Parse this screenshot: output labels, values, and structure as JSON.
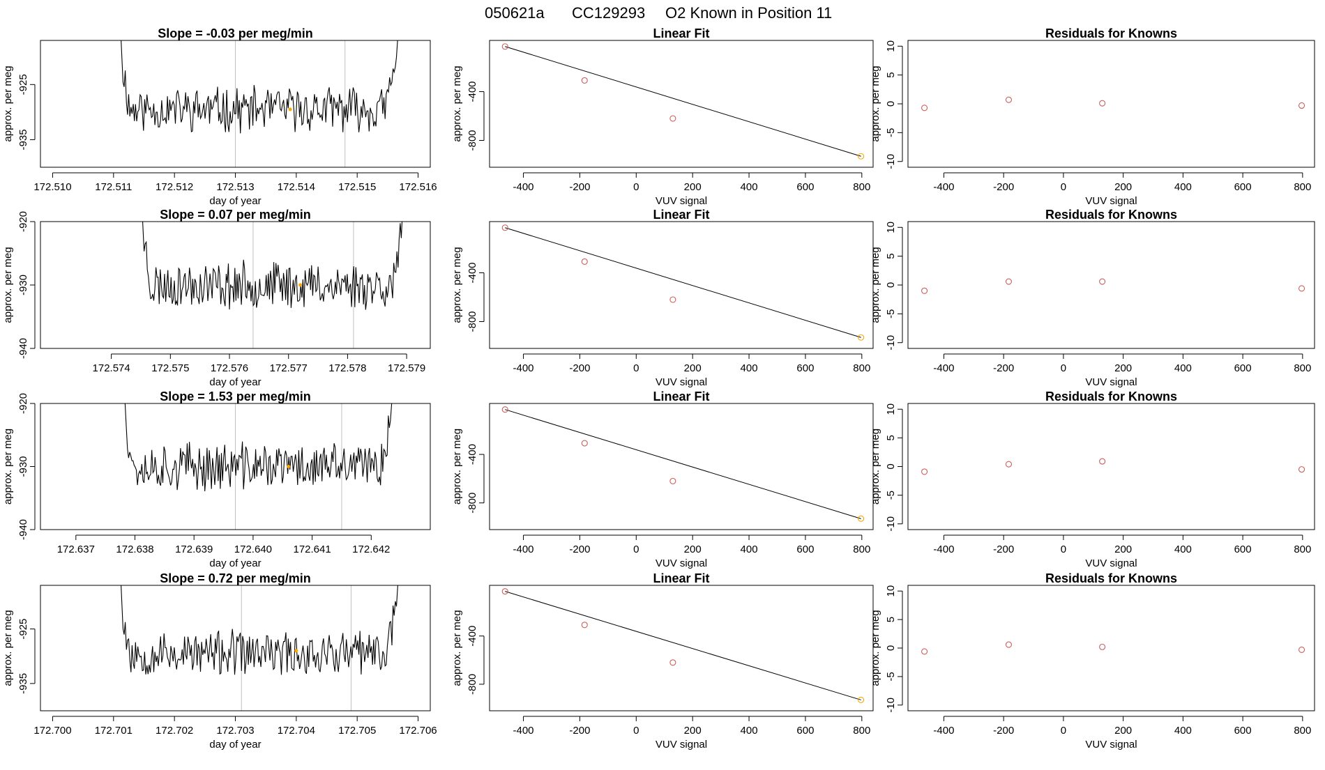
{
  "header": {
    "run_id": "050621a",
    "tank": "CC129293",
    "description": "O2 Known in Position  11"
  },
  "colors": {
    "trace": "#000000",
    "point": "#cd5c5c",
    "highlight": "#ffa500",
    "vline": "#c0c0c0",
    "axis": "#000000"
  },
  "chart_data": [
    {
      "type": "line",
      "row": 0,
      "col": 0,
      "title": "Slope =  -0.03  per meg/min",
      "xlabel": "day of year",
      "ylabel": "approx. per meg",
      "xlim": [
        172.5098,
        172.5162
      ],
      "ylim": [
        -940,
        -917
      ],
      "xticks": [
        "172.510",
        "172.511",
        "172.512",
        "172.513",
        "172.514",
        "172.515",
        "172.516"
      ],
      "xtick_values": [
        172.51,
        172.511,
        172.512,
        172.513,
        172.514,
        172.515,
        172.516
      ],
      "yticks": [
        "-925",
        "-935"
      ],
      "ytick_values": [
        -925,
        -935
      ],
      "trace_start": 172.5111,
      "trace_end": 172.5157,
      "baseline": -929.5,
      "noise": 3.5,
      "seed": 11,
      "vlines": [
        172.513,
        172.5148
      ],
      "highlight_point": {
        "x": 172.5139,
        "y": -929.5
      }
    },
    {
      "type": "scatter",
      "row": 0,
      "col": 1,
      "title": "Linear Fit",
      "xlabel": "VUV signal",
      "ylabel": "approx. per meg",
      "xlim": [
        -520,
        840
      ],
      "ylim": [
        -1020,
        20
      ],
      "xticks": [
        "-400",
        "-200",
        "0",
        "200",
        "400",
        "600",
        "800"
      ],
      "xtick_values": [
        -400,
        -200,
        0,
        200,
        400,
        600,
        800
      ],
      "yticks": [
        "-400",
        "-800"
      ],
      "ytick_values": [
        -400,
        -800
      ],
      "x": [
        -465,
        -183,
        130,
        797
      ],
      "y": [
        -30,
        -308,
        -620,
        -930
      ],
      "fit": {
        "x0": -465,
        "y0": -30,
        "x1": 797,
        "y1": -930
      }
    },
    {
      "type": "scatter",
      "row": 0,
      "col": 2,
      "title": "Residuals for Knowns",
      "xlabel": "VUV signal",
      "ylabel": "approx. per meg",
      "xlim": [
        -520,
        840
      ],
      "ylim": [
        -11,
        11
      ],
      "xticks": [
        "-400",
        "-200",
        "0",
        "200",
        "400",
        "600",
        "800"
      ],
      "xtick_values": [
        -400,
        -200,
        0,
        200,
        400,
        600,
        800
      ],
      "yticks": [
        "-10",
        "-5",
        "0",
        "5",
        "10"
      ],
      "ytick_values": [
        -10,
        -5,
        0,
        5,
        10
      ],
      "x": [
        -465,
        -183,
        130,
        797
      ],
      "y": [
        -0.7,
        0.7,
        0.1,
        -0.3
      ]
    },
    {
      "type": "line",
      "row": 1,
      "col": 0,
      "title": "Slope =  0.07  per meg/min",
      "xlabel": "day of year",
      "ylabel": "approx. per meg",
      "xlim": [
        172.5728,
        172.5794
      ],
      "ylim": [
        -940,
        -920
      ],
      "xticks": [
        "172.574",
        "172.575",
        "172.576",
        "172.577",
        "172.578",
        "172.579"
      ],
      "xtick_values": [
        172.574,
        172.575,
        172.576,
        172.577,
        172.578,
        172.579
      ],
      "yticks": [
        "-920",
        "-930",
        "-940"
      ],
      "ytick_values": [
        -920,
        -930,
        -940
      ],
      "trace_start": 172.5745,
      "trace_end": 172.579,
      "baseline": -930,
      "noise": 3.2,
      "seed": 23,
      "vlines": [
        172.5764,
        172.5781
      ],
      "highlight_point": {
        "x": 172.5772,
        "y": -930
      }
    },
    {
      "type": "scatter",
      "row": 1,
      "col": 1,
      "title": "Linear Fit",
      "xlabel": "VUV signal",
      "ylabel": "approx. per meg",
      "xlim": [
        -520,
        840
      ],
      "ylim": [
        -1020,
        20
      ],
      "xticks": [
        "-400",
        "-200",
        "0",
        "200",
        "400",
        "600",
        "800"
      ],
      "xtick_values": [
        -400,
        -200,
        0,
        200,
        400,
        600,
        800
      ],
      "yticks": [
        "-400",
        "-800"
      ],
      "ytick_values": [
        -400,
        -800
      ],
      "x": [
        -465,
        -183,
        130,
        797
      ],
      "y": [
        -30,
        -308,
        -620,
        -930
      ],
      "fit": {
        "x0": -465,
        "y0": -30,
        "x1": 797,
        "y1": -930
      }
    },
    {
      "type": "scatter",
      "row": 1,
      "col": 2,
      "title": "Residuals for Knowns",
      "xlabel": "VUV signal",
      "ylabel": "approx. per meg",
      "xlim": [
        -520,
        840
      ],
      "ylim": [
        -11,
        11
      ],
      "xticks": [
        "-400",
        "-200",
        "0",
        "200",
        "400",
        "600",
        "800"
      ],
      "xtick_values": [
        -400,
        -200,
        0,
        200,
        400,
        600,
        800
      ],
      "yticks": [
        "-10",
        "-5",
        "0",
        "5",
        "10"
      ],
      "ytick_values": [
        -10,
        -5,
        0,
        5,
        10
      ],
      "x": [
        -465,
        -183,
        130,
        797
      ],
      "y": [
        -1.0,
        0.6,
        0.6,
        -0.6
      ]
    },
    {
      "type": "line",
      "row": 2,
      "col": 0,
      "title": "Slope =  1.53  per meg/min",
      "xlabel": "day of year",
      "ylabel": "approx. per meg",
      "xlim": [
        172.6364,
        172.643
      ],
      "ylim": [
        -940,
        -920
      ],
      "xticks": [
        "172.637",
        "172.638",
        "172.639",
        "172.640",
        "172.641",
        "172.642"
      ],
      "xtick_values": [
        172.637,
        172.638,
        172.639,
        172.64,
        172.641,
        172.642
      ],
      "yticks": [
        "-920",
        "-930",
        "-940"
      ],
      "ytick_values": [
        -920,
        -930,
        -940
      ],
      "trace_start": 172.6378,
      "trace_end": 172.6424,
      "baseline": -930,
      "noise": 3.3,
      "seed": 37,
      "vlines": [
        172.6397,
        172.6415
      ],
      "highlight_point": {
        "x": 172.6406,
        "y": -930
      }
    },
    {
      "type": "scatter",
      "row": 2,
      "col": 1,
      "title": "Linear Fit",
      "xlabel": "VUV signal",
      "ylabel": "approx. per meg",
      "xlim": [
        -520,
        840
      ],
      "ylim": [
        -1020,
        20
      ],
      "xticks": [
        "-400",
        "-200",
        "0",
        "200",
        "400",
        "600",
        "800"
      ],
      "xtick_values": [
        -400,
        -200,
        0,
        200,
        400,
        600,
        800
      ],
      "yticks": [
        "-400",
        "-800"
      ],
      "ytick_values": [
        -400,
        -800
      ],
      "x": [
        -465,
        -183,
        130,
        797
      ],
      "y": [
        -30,
        -308,
        -620,
        -930
      ],
      "fit": {
        "x0": -465,
        "y0": -30,
        "x1": 797,
        "y1": -930
      }
    },
    {
      "type": "scatter",
      "row": 2,
      "col": 2,
      "title": "Residuals for Knowns",
      "xlabel": "VUV signal",
      "ylabel": "approx. per meg",
      "xlim": [
        -520,
        840
      ],
      "ylim": [
        -11,
        11
      ],
      "xticks": [
        "-400",
        "-200",
        "0",
        "200",
        "400",
        "600",
        "800"
      ],
      "xtick_values": [
        -400,
        -200,
        0,
        200,
        400,
        600,
        800
      ],
      "yticks": [
        "-10",
        "-5",
        "0",
        "5",
        "10"
      ],
      "ytick_values": [
        -10,
        -5,
        0,
        5,
        10
      ],
      "x": [
        -465,
        -183,
        130,
        797
      ],
      "y": [
        -0.9,
        0.4,
        0.9,
        -0.5
      ]
    },
    {
      "type": "line",
      "row": 3,
      "col": 0,
      "title": "Slope =  0.72  per meg/min",
      "xlabel": "day of year",
      "ylabel": "approx. per meg",
      "xlim": [
        172.6998,
        172.7062
      ],
      "ylim": [
        -940,
        -917
      ],
      "xticks": [
        "172.700",
        "172.701",
        "172.702",
        "172.703",
        "172.704",
        "172.705",
        "172.706"
      ],
      "xtick_values": [
        172.7,
        172.701,
        172.702,
        172.703,
        172.704,
        172.705,
        172.706
      ],
      "yticks": [
        "-925",
        "-935"
      ],
      "ytick_values": [
        -925,
        -935
      ],
      "trace_start": 172.7011,
      "trace_end": 172.7057,
      "baseline": -929.5,
      "noise": 3.6,
      "seed": 53,
      "vlines": [
        172.7031,
        172.7049
      ],
      "highlight_point": {
        "x": 172.704,
        "y": -929
      }
    },
    {
      "type": "scatter",
      "row": 3,
      "col": 1,
      "title": "Linear Fit",
      "xlabel": "VUV signal",
      "ylabel": "approx. per meg",
      "xlim": [
        -520,
        840
      ],
      "ylim": [
        -1020,
        20
      ],
      "xticks": [
        "-400",
        "-200",
        "0",
        "200",
        "400",
        "600",
        "800"
      ],
      "xtick_values": [
        -400,
        -200,
        0,
        200,
        400,
        600,
        800
      ],
      "yticks": [
        "-400",
        "-800"
      ],
      "ytick_values": [
        -400,
        -800
      ],
      "x": [
        -465,
        -183,
        130,
        797
      ],
      "y": [
        -30,
        -308,
        -620,
        -930
      ],
      "fit": {
        "x0": -465,
        "y0": -30,
        "x1": 797,
        "y1": -930
      }
    },
    {
      "type": "scatter",
      "row": 3,
      "col": 2,
      "title": "Residuals for Knowns",
      "xlabel": "VUV signal",
      "ylabel": "approx. per meg",
      "xlim": [
        -520,
        840
      ],
      "ylim": [
        -11,
        11
      ],
      "xticks": [
        "-400",
        "-200",
        "0",
        "200",
        "400",
        "600",
        "800"
      ],
      "xtick_values": [
        -400,
        -200,
        0,
        200,
        400,
        600,
        800
      ],
      "yticks": [
        "-10",
        "-5",
        "0",
        "5",
        "10"
      ],
      "ytick_values": [
        -10,
        -5,
        0,
        5,
        10
      ],
      "x": [
        -465,
        -183,
        130,
        797
      ],
      "y": [
        -0.6,
        0.6,
        0.2,
        -0.3
      ]
    }
  ]
}
